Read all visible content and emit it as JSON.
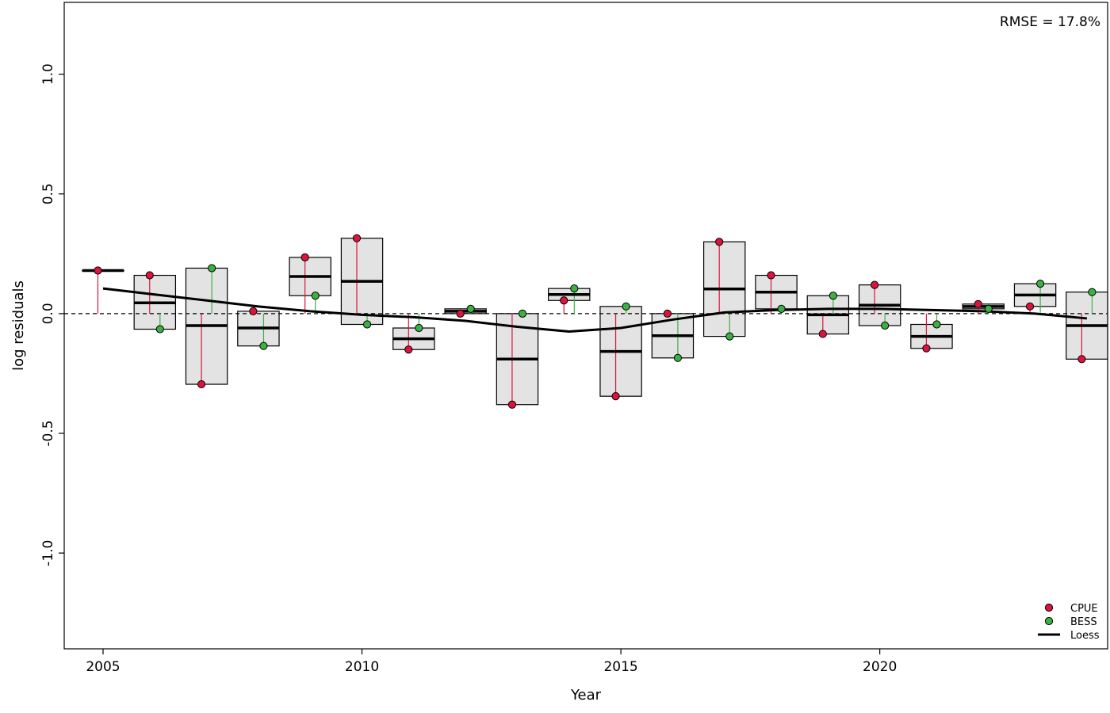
{
  "chart_data": {
    "type": "boxplot-residuals",
    "xlabel": "Year",
    "ylabel": "log residuals",
    "xlim": [
      2004.25,
      2024.4
    ],
    "ylim": [
      -1.4,
      1.3
    ],
    "x_ticks": [
      2005,
      2010,
      2015,
      2020
    ],
    "y_ticks": [
      -1.0,
      -0.5,
      0.0,
      0.5,
      1.0
    ],
    "y_tick_labels": [
      "-1.0",
      "-0.5",
      "0.0",
      "0.5",
      "1.0"
    ],
    "annotation": "RMSE = 17.8%",
    "reference_line": 0,
    "series": [
      {
        "name": "CPUE",
        "color": "#dc143c",
        "offset": -0.1,
        "points": [
          [
            2005,
            0.18
          ],
          [
            2006,
            0.16
          ],
          [
            2007,
            -0.295
          ],
          [
            2008,
            0.01
          ],
          [
            2009,
            0.235
          ],
          [
            2010,
            0.315
          ],
          [
            2011,
            -0.15
          ],
          [
            2012,
            0.0
          ],
          [
            2013,
            -0.38
          ],
          [
            2014,
            0.055
          ],
          [
            2015,
            -0.345
          ],
          [
            2016,
            0.0
          ],
          [
            2017,
            0.3
          ],
          [
            2018,
            0.16
          ],
          [
            2019,
            -0.085
          ],
          [
            2020,
            0.12
          ],
          [
            2021,
            -0.145
          ],
          [
            2022,
            0.04
          ],
          [
            2023,
            0.03
          ],
          [
            2024,
            -0.19
          ]
        ]
      },
      {
        "name": "BESS",
        "color": "#3cb043",
        "offset": 0.1,
        "points": [
          [
            2006,
            -0.065
          ],
          [
            2007,
            0.19
          ],
          [
            2008,
            -0.135
          ],
          [
            2009,
            0.075
          ],
          [
            2010,
            -0.045
          ],
          [
            2011,
            -0.06
          ],
          [
            2012,
            0.02
          ],
          [
            2013,
            0.0
          ],
          [
            2014,
            0.105
          ],
          [
            2015,
            0.03
          ],
          [
            2016,
            -0.185
          ],
          [
            2017,
            -0.095
          ],
          [
            2018,
            0.02
          ],
          [
            2019,
            0.075
          ],
          [
            2020,
            -0.05
          ],
          [
            2021,
            -0.045
          ],
          [
            2022,
            0.02
          ],
          [
            2023,
            0.125
          ],
          [
            2024,
            0.09
          ]
        ]
      }
    ],
    "boxes": [
      {
        "year": 2005,
        "low": 0.18,
        "high": 0.18,
        "median": 0.18
      },
      {
        "year": 2006,
        "low": -0.065,
        "high": 0.16,
        "median": 0.045
      },
      {
        "year": 2007,
        "low": -0.295,
        "high": 0.19,
        "median": -0.05
      },
      {
        "year": 2008,
        "low": -0.135,
        "high": 0.01,
        "median": -0.06
      },
      {
        "year": 2009,
        "low": 0.075,
        "high": 0.235,
        "median": 0.155
      },
      {
        "year": 2010,
        "low": -0.045,
        "high": 0.315,
        "median": 0.135
      },
      {
        "year": 2011,
        "low": -0.15,
        "high": -0.06,
        "median": -0.105
      },
      {
        "year": 2012,
        "low": 0.0,
        "high": 0.02,
        "median": 0.01
      },
      {
        "year": 2013,
        "low": -0.38,
        "high": 0.0,
        "median": -0.19
      },
      {
        "year": 2014,
        "low": 0.055,
        "high": 0.105,
        "median": 0.08
      },
      {
        "year": 2015,
        "low": -0.345,
        "high": 0.03,
        "median": -0.158
      },
      {
        "year": 2016,
        "low": -0.185,
        "high": 0.0,
        "median": -0.092
      },
      {
        "year": 2017,
        "low": -0.095,
        "high": 0.3,
        "median": 0.103
      },
      {
        "year": 2018,
        "low": 0.02,
        "high": 0.16,
        "median": 0.09
      },
      {
        "year": 2019,
        "low": -0.085,
        "high": 0.075,
        "median": -0.005
      },
      {
        "year": 2020,
        "low": -0.05,
        "high": 0.12,
        "median": 0.035
      },
      {
        "year": 2021,
        "low": -0.145,
        "high": -0.045,
        "median": -0.095
      },
      {
        "year": 2022,
        "low": 0.02,
        "high": 0.04,
        "median": 0.03
      },
      {
        "year": 2023,
        "low": 0.03,
        "high": 0.125,
        "median": 0.078
      },
      {
        "year": 2024,
        "low": -0.19,
        "high": 0.09,
        "median": -0.05
      }
    ],
    "loess": {
      "name": "Loess",
      "color": "#000000",
      "points": [
        [
          2005,
          0.105
        ],
        [
          2006,
          0.08
        ],
        [
          2007,
          0.055
        ],
        [
          2008,
          0.03
        ],
        [
          2009,
          0.01
        ],
        [
          2010,
          -0.005
        ],
        [
          2011,
          -0.015
        ],
        [
          2012,
          -0.03
        ],
        [
          2013,
          -0.055
        ],
        [
          2014,
          -0.075
        ],
        [
          2015,
          -0.06
        ],
        [
          2016,
          -0.025
        ],
        [
          2017,
          0.005
        ],
        [
          2018,
          0.015
        ],
        [
          2019,
          0.02
        ],
        [
          2020,
          0.02
        ],
        [
          2021,
          0.015
        ],
        [
          2022,
          0.01
        ],
        [
          2023,
          0.0
        ],
        [
          2024,
          -0.02
        ]
      ]
    },
    "legend": {
      "position": "bottom-right",
      "entries": [
        {
          "label": "CPUE",
          "kind": "point",
          "color": "#dc143c"
        },
        {
          "label": "BESS",
          "kind": "point",
          "color": "#3cb043"
        },
        {
          "label": "Loess",
          "kind": "line",
          "color": "#000000"
        }
      ]
    },
    "box_fill": "#e3e3e3"
  }
}
